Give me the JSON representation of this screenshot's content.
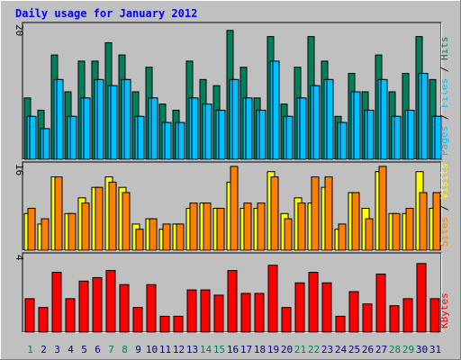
{
  "title": "Daily usage for January 2012",
  "colors": {
    "background": "#c0c0c0",
    "title": "#0000ff",
    "hits": "#00805c",
    "files": "#00c0ff",
    "pages": "#00c0ff",
    "visits": "#ffff00",
    "sites": "#ff8000",
    "kbytes": "#ff0000",
    "weekend_label": "#00805c",
    "weekday_label": "#000080",
    "separator": "#000000"
  },
  "chart_data": [
    {
      "type": "bar",
      "name": "hits-files-pages",
      "ylabel_parts": [
        "Pages",
        "Files",
        "Hits"
      ],
      "ymax_label": "20",
      "ylim": [
        0,
        22
      ],
      "categories": [
        "1",
        "2",
        "3",
        "4",
        "5",
        "6",
        "7",
        "8",
        "9",
        "10",
        "11",
        "12",
        "13",
        "14",
        "15",
        "16",
        "17",
        "18",
        "19",
        "20",
        "21",
        "22",
        "23",
        "24",
        "25",
        "26",
        "27",
        "28",
        "29",
        "30",
        "31"
      ],
      "series": [
        {
          "name": "Hits",
          "values": [
            10,
            8,
            17,
            11,
            16,
            16,
            19,
            17,
            11,
            15,
            9,
            8,
            16,
            13,
            12,
            21,
            15,
            10,
            20,
            9,
            15,
            20,
            16,
            7,
            14,
            11,
            17,
            11,
            14,
            20,
            13
          ]
        },
        {
          "name": "Files",
          "values": [
            7,
            5,
            13,
            7,
            10,
            13,
            12,
            13,
            7,
            10,
            6,
            6,
            10,
            9,
            8,
            13,
            10,
            8,
            16,
            7,
            10,
            12,
            13,
            6,
            11,
            8,
            13,
            7,
            8,
            14,
            7
          ]
        },
        {
          "name": "Pages",
          "values": [
            7,
            5,
            13,
            7,
            10,
            13,
            12,
            13,
            7,
            10,
            6,
            6,
            10,
            9,
            8,
            13,
            10,
            8,
            16,
            7,
            10,
            12,
            13,
            6,
            11,
            8,
            13,
            7,
            8,
            14,
            7
          ]
        }
      ]
    },
    {
      "type": "bar",
      "name": "visits-sites",
      "ylabel_parts": [
        "Sites",
        "Visits"
      ],
      "ymax_label": "16",
      "ylim": [
        0,
        16.5
      ],
      "categories": [
        "1",
        "2",
        "3",
        "4",
        "5",
        "6",
        "7",
        "8",
        "9",
        "10",
        "11",
        "12",
        "13",
        "14",
        "15",
        "16",
        "17",
        "18",
        "19",
        "20",
        "21",
        "22",
        "23",
        "24",
        "25",
        "26",
        "27",
        "28",
        "29",
        "30",
        "31"
      ],
      "series": [
        {
          "name": "Visits",
          "values": [
            7,
            5,
            14,
            7,
            10,
            12,
            14,
            12,
            5,
            6,
            4,
            5,
            8,
            9,
            8,
            13,
            8,
            8,
            15,
            7,
            10,
            9,
            12,
            4,
            11,
            8,
            15,
            7,
            7,
            15,
            8
          ]
        },
        {
          "name": "Sites",
          "values": [
            8,
            6,
            14,
            7,
            9,
            12,
            13,
            11,
            4,
            6,
            5,
            5,
            9,
            9,
            8,
            16,
            9,
            9,
            14,
            6,
            9,
            14,
            14,
            5,
            11,
            6,
            16,
            7,
            8,
            11,
            11
          ]
        }
      ]
    },
    {
      "type": "bar",
      "name": "kbytes",
      "ylabel_parts": [
        "KBytes"
      ],
      "ymax_label": "4",
      "ylim": [
        0,
        4.4
      ],
      "categories": [
        "1",
        "2",
        "3",
        "4",
        "5",
        "6",
        "7",
        "8",
        "9",
        "10",
        "11",
        "12",
        "13",
        "14",
        "15",
        "16",
        "17",
        "18",
        "19",
        "20",
        "21",
        "22",
        "23",
        "24",
        "25",
        "26",
        "27",
        "28",
        "29",
        "30",
        "31"
      ],
      "series": [
        {
          "name": "KBytes",
          "values": [
            1.9,
            1.4,
            3.4,
            1.9,
            2.9,
            3.1,
            3.5,
            2.7,
            1.4,
            2.7,
            0.9,
            0.9,
            2.4,
            2.4,
            2.1,
            3.5,
            2.2,
            2.2,
            3.8,
            1.4,
            2.8,
            3.4,
            2.8,
            0.9,
            2.3,
            1.6,
            3.3,
            1.5,
            1.9,
            3.9,
            1.9
          ]
        }
      ]
    }
  ]
}
